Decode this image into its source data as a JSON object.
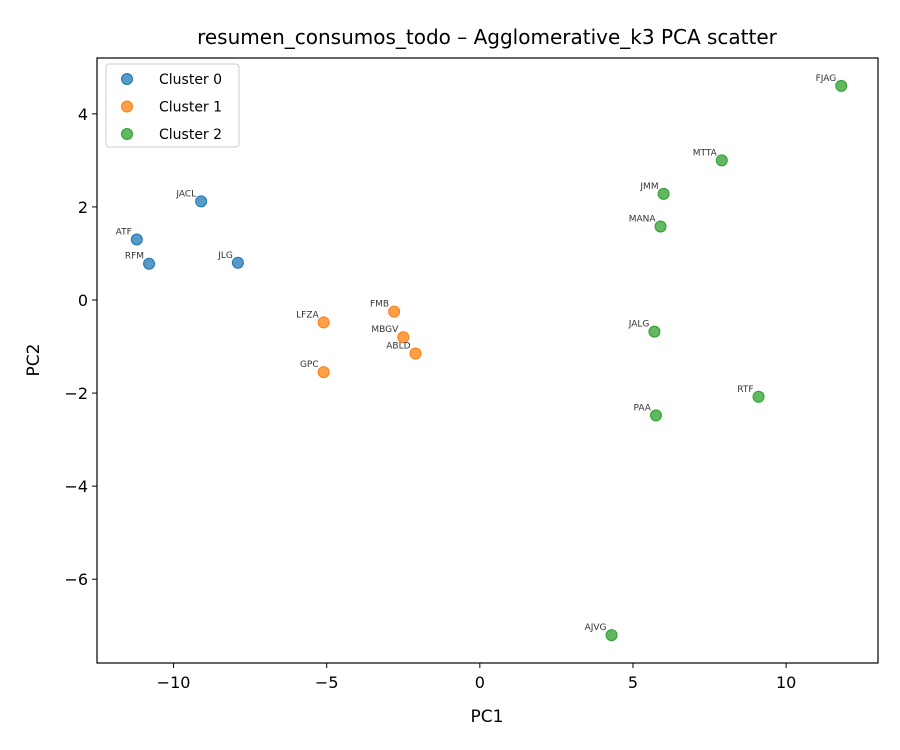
{
  "chart_data": {
    "type": "scatter",
    "title": "resumen_consumos_todo – Agglomerative_k3 PCA scatter",
    "xlabel": "PC1",
    "ylabel": "PC2",
    "xlim": [
      -12.5,
      13.0
    ],
    "ylim": [
      -7.8,
      5.2
    ],
    "xticks": [
      -10,
      -5,
      0,
      5,
      10
    ],
    "yticks": [
      -6,
      -4,
      -2,
      0,
      2,
      4
    ],
    "grid": false,
    "legend_position": "top-left",
    "series": [
      {
        "name": "Cluster 0",
        "color": "#1f77b4",
        "points": [
          {
            "label": "JACL",
            "x": -9.1,
            "y": 2.12
          },
          {
            "label": "ATF",
            "x": -11.2,
            "y": 1.3
          },
          {
            "label": "RFM",
            "x": -10.8,
            "y": 0.78
          },
          {
            "label": "JLG",
            "x": -7.9,
            "y": 0.8
          }
        ]
      },
      {
        "name": "Cluster 1",
        "color": "#ff7f0e",
        "points": [
          {
            "label": "FMB",
            "x": -2.8,
            "y": -0.25
          },
          {
            "label": "LFZA",
            "x": -5.1,
            "y": -0.48
          },
          {
            "label": "MBGV",
            "x": -2.5,
            "y": -0.8
          },
          {
            "label": "ABLD",
            "x": -2.1,
            "y": -1.15
          },
          {
            "label": "GPC",
            "x": -5.1,
            "y": -1.55
          }
        ]
      },
      {
        "name": "Cluster 2",
        "color": "#2ca02c",
        "points": [
          {
            "label": "FJAG",
            "x": 11.8,
            "y": 4.6
          },
          {
            "label": "MTTA",
            "x": 7.9,
            "y": 3.0
          },
          {
            "label": "JMM",
            "x": 6.0,
            "y": 2.28
          },
          {
            "label": "MANA",
            "x": 5.9,
            "y": 1.58
          },
          {
            "label": "JALG",
            "x": 5.7,
            "y": -0.68
          },
          {
            "label": "RTF",
            "x": 9.1,
            "y": -2.08
          },
          {
            "label": "PAA",
            "x": 5.75,
            "y": -2.48
          },
          {
            "label": "AJVG",
            "x": 4.3,
            "y": -7.2
          }
        ]
      }
    ]
  }
}
